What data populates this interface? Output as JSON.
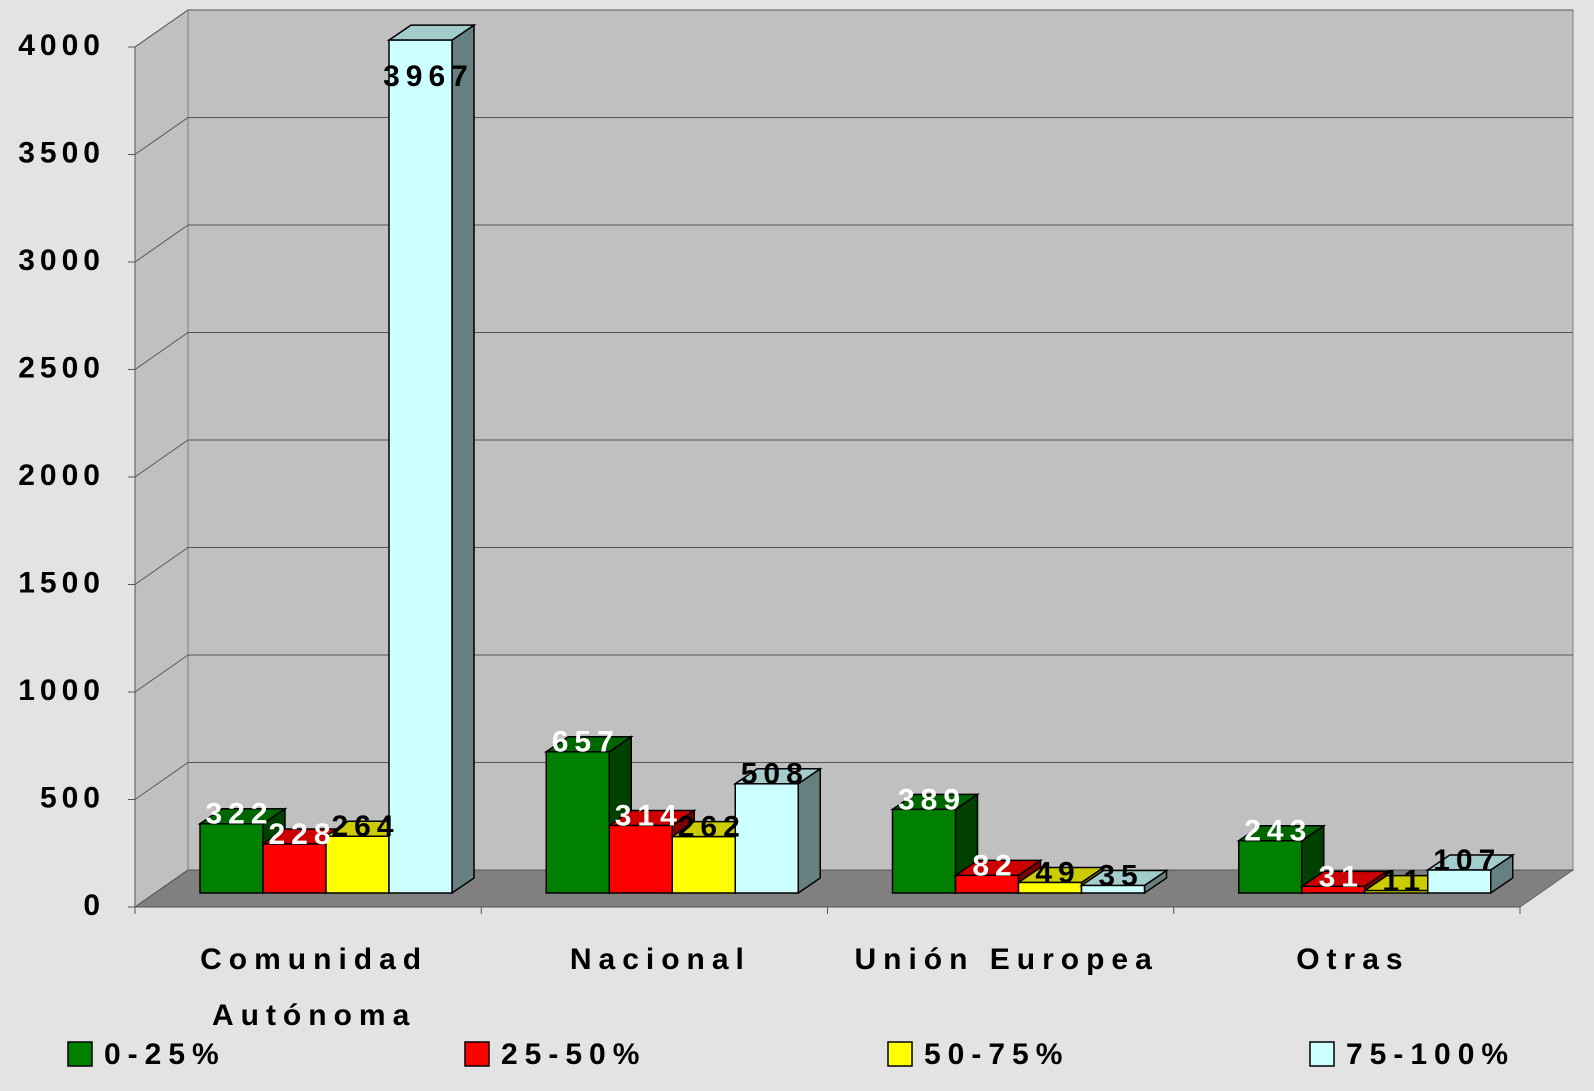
{
  "chart_data": {
    "type": "bar3d",
    "categories": [
      "Comunidad Autónoma",
      "Nacional",
      "Unión Europea",
      "Otras"
    ],
    "series": [
      {
        "name": "0-25%",
        "color": "#008000",
        "values": [
          322,
          657,
          389,
          243
        ]
      },
      {
        "name": "25-50%",
        "color": "#ff0000",
        "values": [
          228,
          314,
          82,
          31
        ]
      },
      {
        "name": "50-75%",
        "color": "#ffff00",
        "values": [
          264,
          262,
          49,
          11
        ]
      },
      {
        "name": "75-100%",
        "color": "#ccffff",
        "values": [
          3967,
          508,
          35,
          107
        ]
      }
    ],
    "ylim": [
      0,
      4000
    ],
    "yticks": [
      0,
      500,
      1000,
      1500,
      2000,
      2500,
      3000,
      3500,
      4000
    ],
    "grid": true
  }
}
